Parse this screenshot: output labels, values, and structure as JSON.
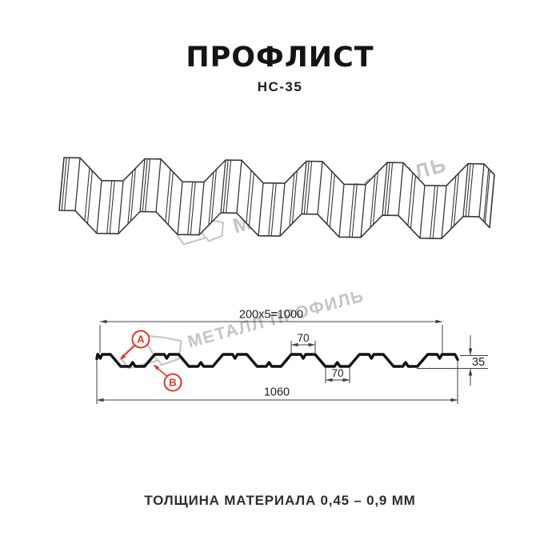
{
  "title": "ПРОФЛИСТ",
  "subtitle": "НС-35",
  "watermark": {
    "text": "МЕТАЛЛ ПРОФИЛЬ"
  },
  "cross_section": {
    "dim_top_modules": "200x5=1000",
    "dim_top_flange": "70",
    "dim_bottom_flange": "70",
    "dim_height": "35",
    "dim_overall_width": "1060",
    "callout_a": "А",
    "callout_b": "В"
  },
  "footer": "ТОЛЩИНА МАТЕРИАЛА 0,45 – 0,9 ММ",
  "colors": {
    "accent_red": "#e3342a",
    "watermark_gray": "#c7c7c7",
    "profile_black": "#101010",
    "dim_line_gray": "#3f3f3f",
    "sheet_line_gray": "#383838"
  }
}
